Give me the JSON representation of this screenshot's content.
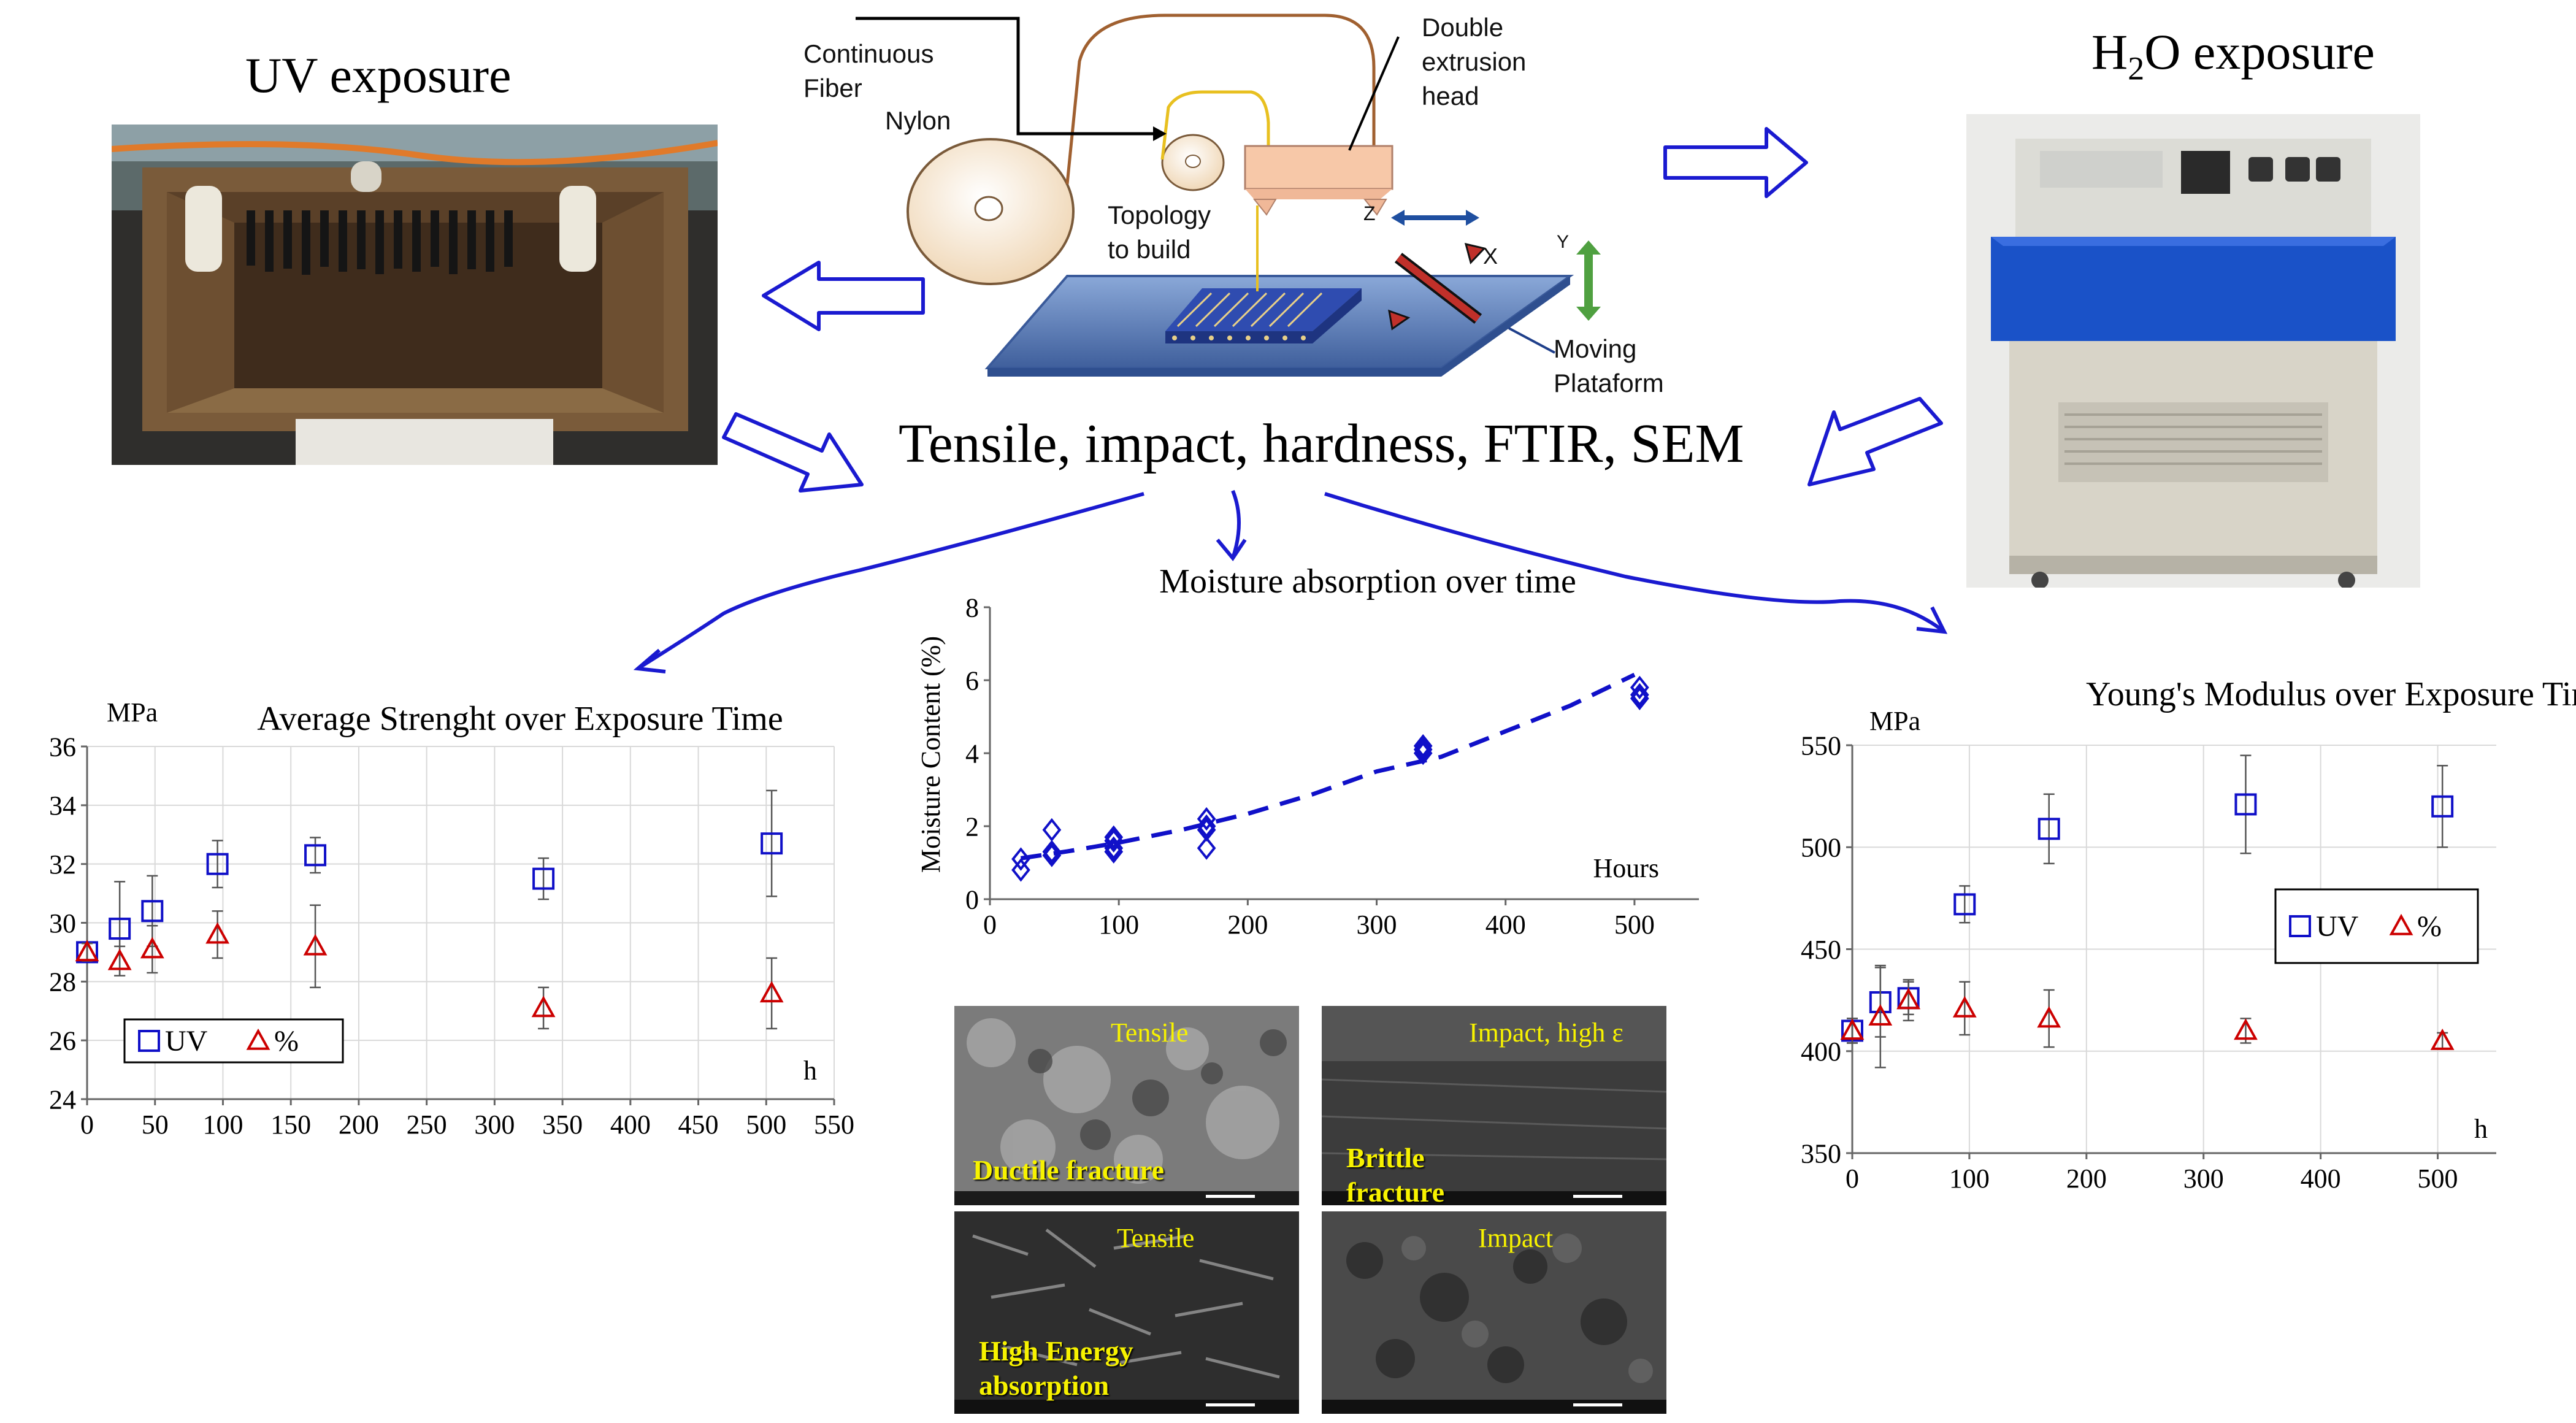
{
  "uv_exposure": {
    "title": "UV exposure"
  },
  "h2o_exposure": {
    "title_prefix": "H",
    "title_sub": "2",
    "title_suffix": "O exposure"
  },
  "printer": {
    "continuous_fiber_line1": "Continuous",
    "continuous_fiber_line2": "Fiber",
    "nylon": "Nylon",
    "head_line1": "Double",
    "head_line2": "extrusion",
    "head_line3": "head",
    "topology_line1": "Topology",
    "topology_line2": "to build",
    "axis_z": "Z",
    "axis_x": "X",
    "axis_y": "Y",
    "platform_line1": "Moving",
    "platform_line2": "Plataform"
  },
  "tests": {
    "label": "Tensile, impact, hardness, FTIR, SEM"
  },
  "sem_images": [
    {
      "label": "Tensile",
      "note_line1": "Ductile fracture",
      "note_line2": ""
    },
    {
      "label": "Impact, high ε",
      "note_line1": "Brittle",
      "note_line2": "fracture"
    },
    {
      "label": "Tensile",
      "note_line1": "High Energy",
      "note_line2": "absorption"
    },
    {
      "label": "Impact",
      "note_line1": "",
      "note_line2": ""
    }
  ],
  "colors": {
    "blue": "#1010c8",
    "red": "#cc0000",
    "arrow_blue": "#1a1ad0",
    "sem_text": "#f7f200"
  },
  "chart_data": [
    {
      "type": "scatter",
      "title": "Average Strenght over Exposure Time",
      "ylabel": "MPa",
      "xlabel": "h",
      "xlim": [
        0,
        550
      ],
      "ylim": [
        24,
        36
      ],
      "xticks": [
        0,
        50,
        100,
        150,
        200,
        250,
        300,
        350,
        400,
        450,
        500,
        550
      ],
      "yticks": [
        24,
        26,
        28,
        30,
        32,
        34,
        36
      ],
      "legend": "bottom-left",
      "series": [
        {
          "name": "UV",
          "marker": "square",
          "color": "#1010c8",
          "x": [
            0,
            24,
            48,
            96,
            168,
            336,
            504
          ],
          "y": [
            29.0,
            29.8,
            30.4,
            32.0,
            32.3,
            31.5,
            32.7
          ],
          "err": [
            0.3,
            1.6,
            1.2,
            0.8,
            0.6,
            0.7,
            1.8
          ]
        },
        {
          "name": "%",
          "marker": "triangle",
          "color": "#cc0000",
          "x": [
            0,
            24,
            48,
            96,
            168,
            336,
            504
          ],
          "y": [
            29.0,
            28.7,
            29.1,
            29.6,
            29.2,
            27.1,
            27.6
          ],
          "err": [
            0.3,
            0.5,
            0.8,
            0.8,
            1.4,
            0.7,
            1.2
          ]
        }
      ]
    },
    {
      "type": "scatter",
      "title": "Moisture absorption over time",
      "ylabel": "Moisture Content (%)",
      "xlabel": "Hours",
      "xlim": [
        0,
        550
      ],
      "ylim": [
        0,
        8
      ],
      "xticks": [
        0,
        100,
        200,
        300,
        400,
        500
      ],
      "yticks": [
        0,
        2,
        4,
        6,
        8
      ],
      "series": [
        {
          "name": "",
          "marker": "diamond",
          "color": "#1010c8",
          "x": [
            24,
            24,
            48,
            48,
            48,
            96,
            96,
            96,
            96,
            168,
            168,
            168,
            168,
            336,
            336,
            336,
            504,
            504,
            504
          ],
          "y": [
            0.8,
            1.1,
            1.2,
            1.3,
            1.9,
            1.3,
            1.4,
            1.6,
            1.7,
            1.4,
            1.9,
            2.0,
            2.2,
            4.0,
            4.1,
            4.2,
            5.5,
            5.6,
            5.8
          ]
        },
        {
          "name": "",
          "type": "trend",
          "color": "#1010c8",
          "x": [
            24,
            60,
            100,
            150,
            200,
            250,
            300,
            350,
            400,
            450,
            500
          ],
          "y": [
            1.12,
            1.31,
            1.55,
            1.91,
            2.34,
            2.87,
            3.5,
            3.9,
            4.6,
            5.3,
            6.15
          ]
        }
      ]
    },
    {
      "type": "scatter",
      "title": "Young's Modulus over Exposure Time",
      "ylabel": "MPa",
      "xlabel": "h",
      "xlim": [
        0,
        550
      ],
      "ylim": [
        350,
        550
      ],
      "xticks": [
        0,
        100,
        200,
        300,
        400,
        500
      ],
      "yticks": [
        350,
        400,
        450,
        500,
        550
      ],
      "legend": "right",
      "series": [
        {
          "name": "UV",
          "marker": "square",
          "color": "#1010c8",
          "x": [
            0,
            24,
            48,
            96,
            168,
            336,
            504
          ],
          "y": [
            410,
            424,
            426,
            472,
            509,
            521,
            520
          ],
          "err": [
            6,
            17,
            8,
            9,
            17,
            24,
            20
          ]
        },
        {
          "name": "%",
          "marker": "triangle",
          "color": "#cc0000",
          "x": [
            0,
            24,
            48,
            96,
            168,
            336,
            504
          ],
          "y": [
            410,
            417,
            425,
            421,
            416,
            410,
            405
          ],
          "err": [
            6,
            25,
            10,
            13,
            14,
            6,
            4
          ]
        }
      ]
    }
  ]
}
